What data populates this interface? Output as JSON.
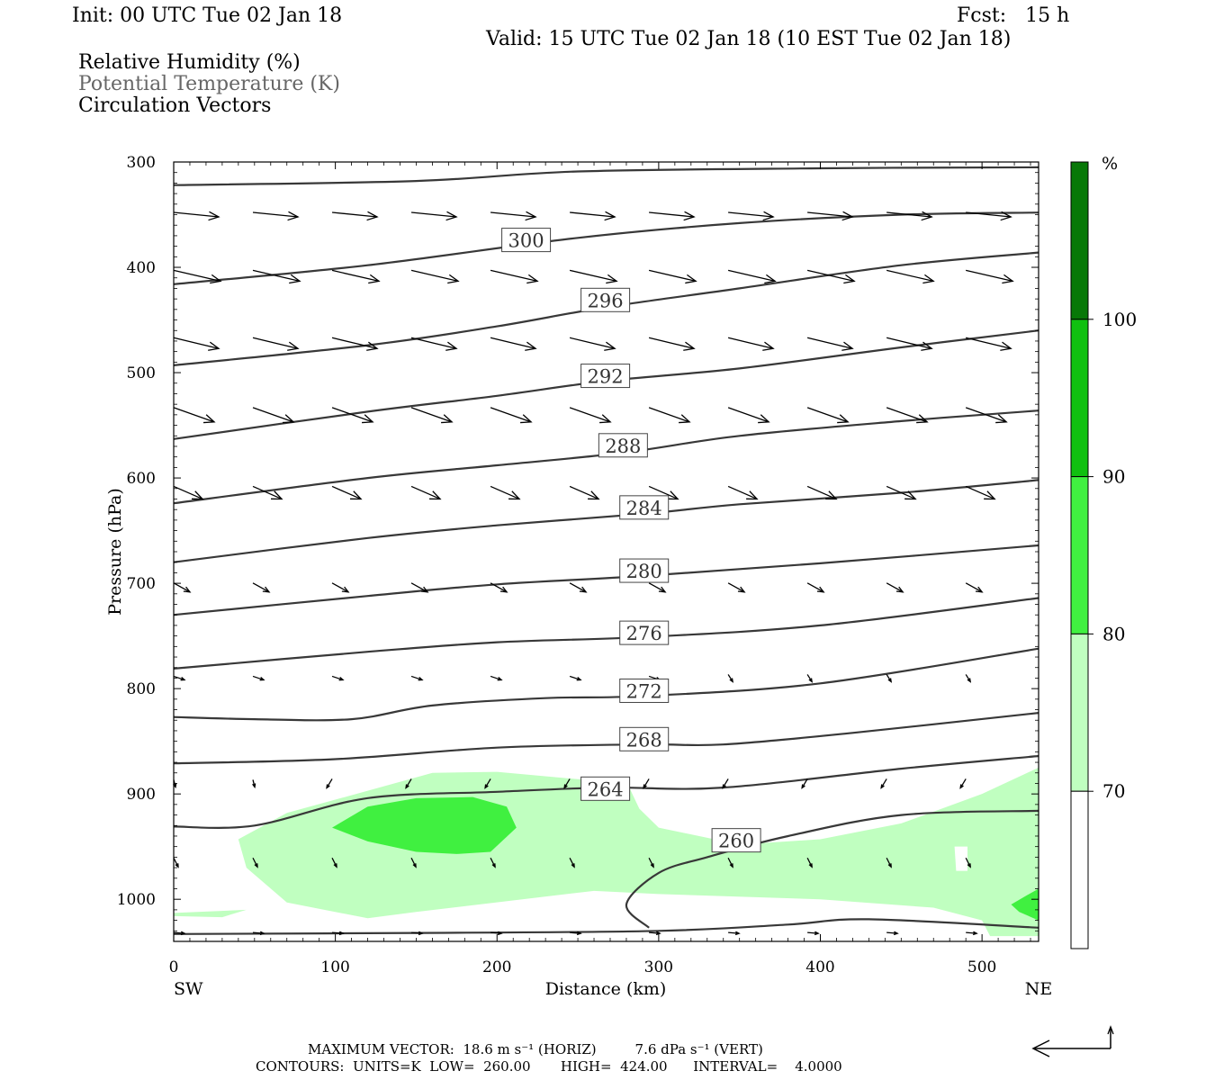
{
  "header": {
    "init": "Init: 00 UTC Tue 02 Jan 18",
    "fcst": "Fcst:   15 h",
    "valid": "Valid: 15 UTC Tue 02 Jan 18 (10 EST Tue 02 Jan 18)"
  },
  "legend": {
    "rh": "Relative Humidity (%)",
    "theta": "Potential Temperature (K)",
    "vectors": "Circulation Vectors"
  },
  "footer": {
    "max_vector": "MAXIMUM VECTOR:  18.6 m s⁻¹ (HORIZ)         7.6 dPa s⁻¹ (VERT)",
    "contours": "CONTOURS:  UNITS=K  LOW=  260.00       HIGH=  424.00      INTERVAL=    4.0000"
  },
  "colors": {
    "rh_70_80": "#c0ffc0",
    "rh_80_90": "#40f040",
    "rh_90_100": "#10c010",
    "rh_100": "#087808",
    "contour": "#383838"
  },
  "chart_data": {
    "type": "cross-section",
    "xlabel": "Distance (km)",
    "ylabel": "Pressure (hPa)",
    "xlim": [
      0,
      535
    ],
    "ylim": [
      1040,
      300
    ],
    "y_scale": "linear (reversed)",
    "x_ticks": [
      0,
      100,
      200,
      300,
      400,
      500
    ],
    "y_ticks": [
      300,
      400,
      500,
      600,
      700,
      800,
      900,
      1000
    ],
    "end_labels": {
      "left": "SW",
      "right": "NE"
    },
    "colorbar": {
      "unit": "%",
      "levels": [
        70,
        80,
        90,
        100
      ],
      "colors": [
        "#ffffff",
        "#c0ffc0",
        "#40f040",
        "#10c010",
        "#087808"
      ]
    },
    "theta_contours": [
      {
        "label": "300",
        "label_at": [
          218,
          374
        ],
        "points": [
          [
            0,
            416
          ],
          [
            120,
            398
          ],
          [
            250,
            372
          ],
          [
            350,
            358
          ],
          [
            450,
            350
          ],
          [
            535,
            348
          ]
        ]
      },
      {
        "label": "296",
        "label_at": [
          267,
          431
        ],
        "points": [
          [
            0,
            493
          ],
          [
            120,
            474
          ],
          [
            200,
            456
          ],
          [
            267,
            438
          ],
          [
            350,
            420
          ],
          [
            450,
            398
          ],
          [
            535,
            386
          ]
        ]
      },
      {
        "label": "292",
        "label_at": [
          267,
          503
        ],
        "points": [
          [
            0,
            563
          ],
          [
            120,
            537
          ],
          [
            200,
            522
          ],
          [
            267,
            508
          ],
          [
            350,
            496
          ],
          [
            450,
            476
          ],
          [
            535,
            460
          ]
        ]
      },
      {
        "label": "288",
        "label_at": [
          278,
          569
        ],
        "points": [
          [
            0,
            624
          ],
          [
            120,
            600
          ],
          [
            200,
            588
          ],
          [
            278,
            576
          ],
          [
            350,
            560
          ],
          [
            450,
            546
          ],
          [
            535,
            536
          ]
        ]
      },
      {
        "label": "284",
        "label_at": [
          291,
          628
        ],
        "points": [
          [
            0,
            680
          ],
          [
            120,
            657
          ],
          [
            200,
            645
          ],
          [
            291,
            634
          ],
          [
            350,
            625
          ],
          [
            450,
            614
          ],
          [
            535,
            602
          ]
        ]
      },
      {
        "label": "280",
        "label_at": [
          291,
          688
        ],
        "points": [
          [
            0,
            730
          ],
          [
            120,
            712
          ],
          [
            200,
            701
          ],
          [
            291,
            693
          ],
          [
            400,
            681
          ],
          [
            535,
            664
          ]
        ]
      },
      {
        "label": "276",
        "label_at": [
          291,
          747
        ],
        "points": [
          [
            0,
            781
          ],
          [
            120,
            765
          ],
          [
            200,
            756
          ],
          [
            291,
            751
          ],
          [
            400,
            740
          ],
          [
            535,
            714
          ]
        ]
      },
      {
        "label": "272",
        "label_at": [
          291,
          802
        ],
        "points": [
          [
            0,
            827
          ],
          [
            50,
            829
          ],
          [
            110,
            829
          ],
          [
            160,
            816
          ],
          [
            230,
            809
          ],
          [
            291,
            807
          ],
          [
            400,
            795
          ],
          [
            535,
            762
          ]
        ]
      },
      {
        "label": "268",
        "label_at": [
          291,
          848
        ],
        "points": [
          [
            0,
            871
          ],
          [
            100,
            867
          ],
          [
            200,
            856
          ],
          [
            291,
            853
          ],
          [
            340,
            853
          ],
          [
            420,
            842
          ],
          [
            535,
            823
          ]
        ]
      },
      {
        "label": "264",
        "label_at": [
          267,
          895
        ],
        "points": [
          [
            0,
            931
          ],
          [
            50,
            930
          ],
          [
            120,
            904
          ],
          [
            200,
            898
          ],
          [
            267,
            894
          ],
          [
            340,
            894
          ],
          [
            450,
            876
          ],
          [
            535,
            864
          ]
        ]
      },
      {
        "label": "260",
        "label_at": [
          348,
          944
        ],
        "points": [
          [
            294,
            1027
          ],
          [
            280,
            1005
          ],
          [
            300,
            975
          ],
          [
            330,
            960
          ],
          [
            380,
            940
          ],
          [
            450,
            920
          ],
          [
            535,
            916
          ]
        ]
      },
      {
        "label": "",
        "label_at": null,
        "points": [
          [
            0,
            1033
          ],
          [
            150,
            1032
          ],
          [
            300,
            1030
          ],
          [
            380,
            1024
          ],
          [
            430,
            1019
          ],
          [
            535,
            1027
          ]
        ]
      },
      {
        "label": "",
        "label_at": null,
        "points": [
          [
            0,
            322
          ],
          [
            150,
            318
          ],
          [
            250,
            309
          ],
          [
            400,
            306
          ],
          [
            535,
            305
          ]
        ]
      }
    ]
  }
}
